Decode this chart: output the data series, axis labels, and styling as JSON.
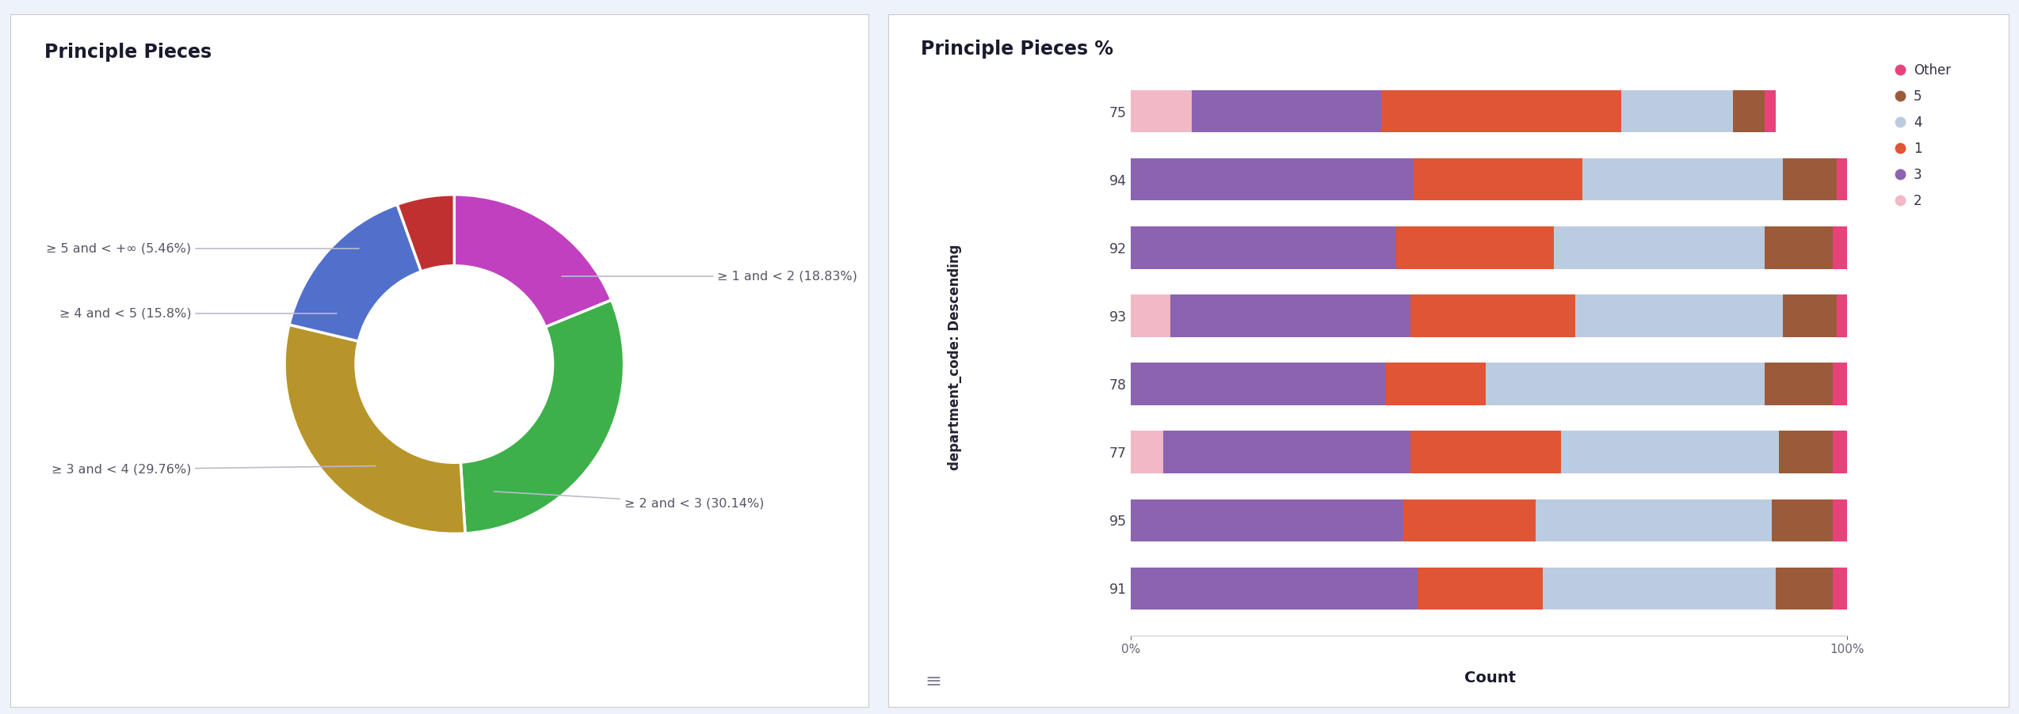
{
  "donut_title": "Principle Pieces",
  "donut_labels": [
    "≥ 1 and < 2 (18.83%)",
    "≥ 2 and < 3 (30.14%)",
    "≥ 3 and < 4 (29.76%)",
    "≥ 4 and < 5 (15.8%)",
    "≥ 5 and < +∞ (5.46%)"
  ],
  "donut_values": [
    18.83,
    30.14,
    29.76,
    15.8,
    5.46
  ],
  "donut_colors": [
    "#C040C0",
    "#3DB04A",
    "#B8952A",
    "#5070CC",
    "#C03030"
  ],
  "bar_title": "Principle Pieces %",
  "bar_ylabel": "department_code: Descending",
  "bar_xlabel": "Count",
  "bar_categories": [
    "75",
    "94",
    "92",
    "93",
    "78",
    "77",
    "95",
    "91"
  ],
  "bar_segments": [
    "2",
    "3",
    "1",
    "4",
    "5",
    "Other"
  ],
  "bar_colors": [
    "#F2B8C6",
    "#8B63B0",
    "#E05535",
    "#BCCCE0",
    "#9B5B3A",
    "#E8427A"
  ],
  "bar_data": {
    "75": {
      "2": 0.085,
      "3": 0.265,
      "1": 0.335,
      "4": 0.155,
      "5": 0.045,
      "Other": 0.015
    },
    "94": {
      "2": 0.0,
      "3": 0.395,
      "1": 0.235,
      "4": 0.28,
      "5": 0.075,
      "Other": 0.015
    },
    "92": {
      "2": 0.0,
      "3": 0.37,
      "1": 0.22,
      "4": 0.295,
      "5": 0.095,
      "Other": 0.02
    },
    "93": {
      "2": 0.055,
      "3": 0.335,
      "1": 0.23,
      "4": 0.29,
      "5": 0.075,
      "Other": 0.015
    },
    "78": {
      "2": 0.0,
      "3": 0.355,
      "1": 0.14,
      "4": 0.39,
      "5": 0.095,
      "Other": 0.02
    },
    "77": {
      "2": 0.045,
      "3": 0.345,
      "1": 0.21,
      "4": 0.305,
      "5": 0.075,
      "Other": 0.02
    },
    "95": {
      "2": 0.0,
      "3": 0.38,
      "1": 0.185,
      "4": 0.33,
      "5": 0.085,
      "Other": 0.02
    },
    "91": {
      "2": 0.0,
      "3": 0.4,
      "1": 0.175,
      "4": 0.325,
      "5": 0.08,
      "Other": 0.02
    }
  },
  "bg_color": "#EEF2FA",
  "panel_bg": "#FFFFFF",
  "legend_labels": [
    "Other",
    "5",
    "4",
    "1",
    "3",
    "2"
  ],
  "legend_colors": [
    "#E8427A",
    "#9B5B3A",
    "#BCCCE0",
    "#E05535",
    "#8B63B0",
    "#F2B8C6"
  ]
}
